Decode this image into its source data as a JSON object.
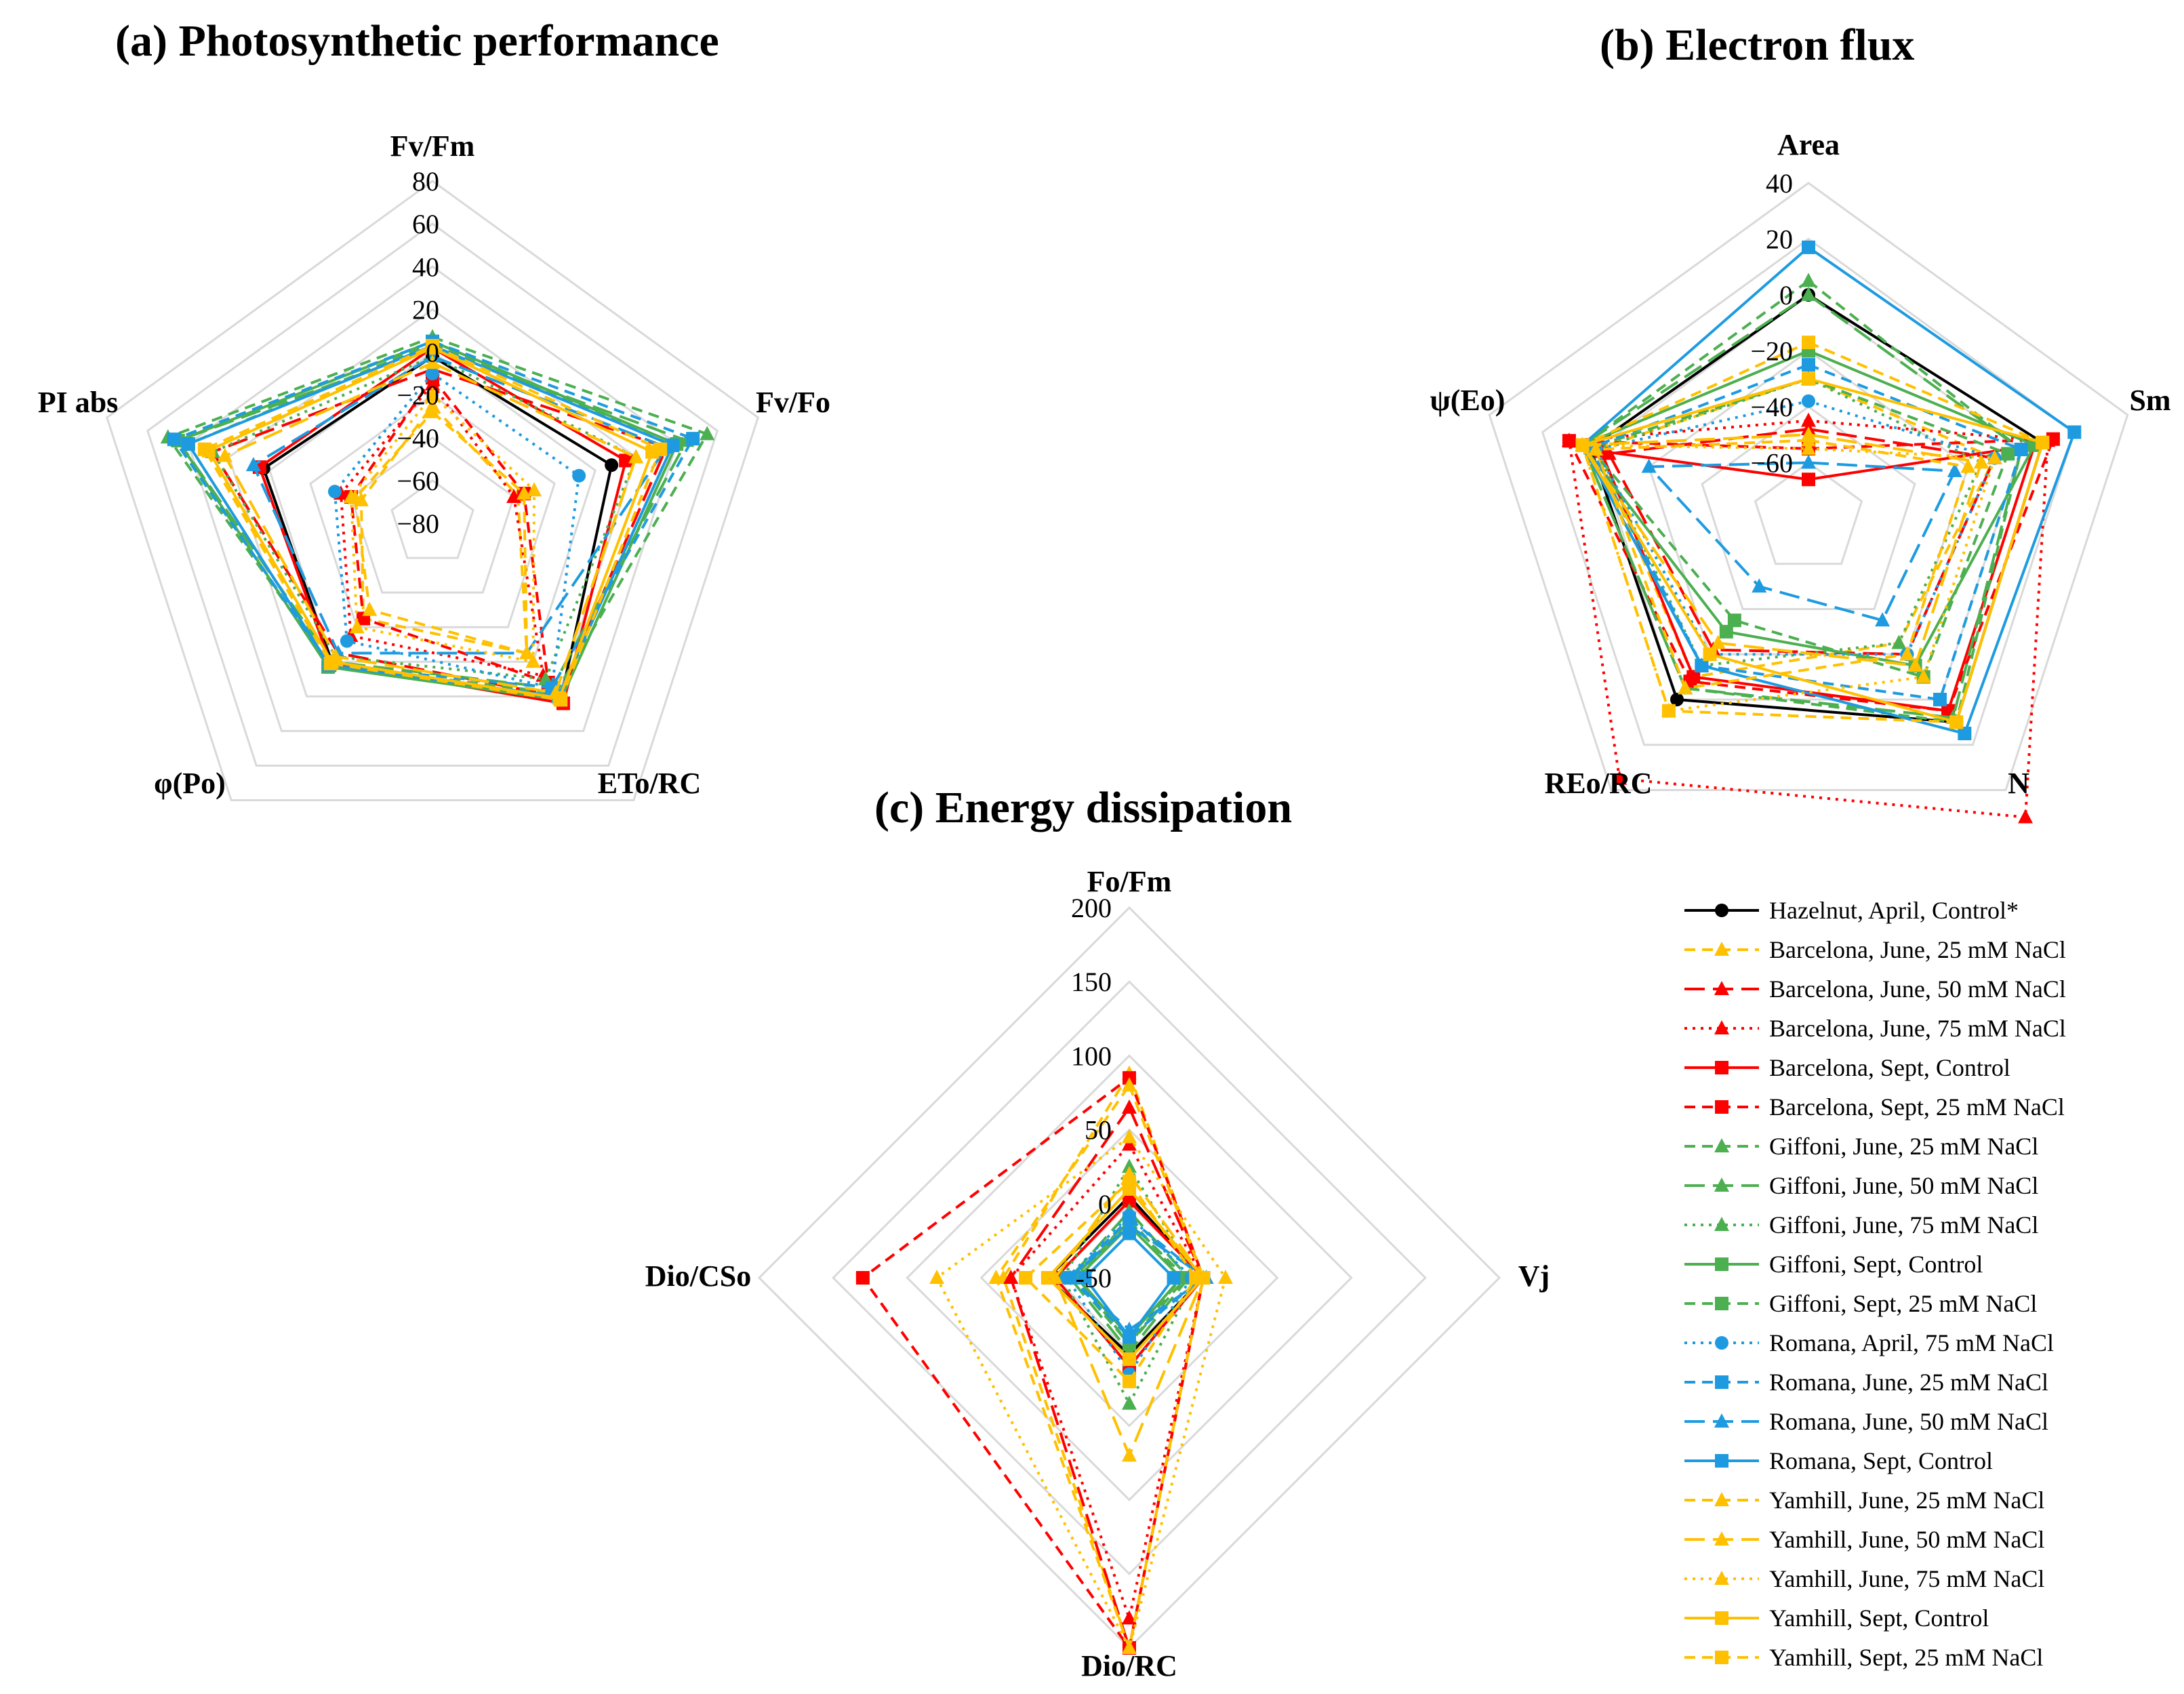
{
  "legend": {
    "entries": [
      {
        "label": "Hazelnut, April, Control*",
        "color": "#000000",
        "dash": "solid",
        "marker": "circle"
      },
      {
        "label": "Barcelona, June, 25 mM NaCl",
        "color": "#FFC000",
        "dash": "dash",
        "marker": "triangle"
      },
      {
        "label": "Barcelona, June, 50 mM NaCl",
        "color": "#FF0000",
        "dash": "longdash",
        "marker": "triangle"
      },
      {
        "label": "Barcelona, June, 75 mM NaCl",
        "color": "#FF0000",
        "dash": "dot",
        "marker": "triangle"
      },
      {
        "label": "Barcelona, Sept, Control",
        "color": "#FF0000",
        "dash": "solid",
        "marker": "square"
      },
      {
        "label": "Barcelona, Sept, 25 mM NaCl",
        "color": "#FF0000",
        "dash": "dash",
        "marker": "square"
      },
      {
        "label": "Giffoni, June, 25 mM NaCl",
        "color": "#4CAF50",
        "dash": "dash",
        "marker": "triangle"
      },
      {
        "label": "Giffoni, June, 50 mM NaCl",
        "color": "#4CAF50",
        "dash": "longdash",
        "marker": "triangle"
      },
      {
        "label": "Giffoni, June, 75 mM NaCl",
        "color": "#4CAF50",
        "dash": "dot",
        "marker": "triangle"
      },
      {
        "label": "Giffoni, Sept, Control",
        "color": "#4CAF50",
        "dash": "solid",
        "marker": "square"
      },
      {
        "label": "Giffoni, Sept, 25 mM NaCl",
        "color": "#4CAF50",
        "dash": "dash",
        "marker": "square"
      },
      {
        "label": "Romana, April, 75 mM NaCl",
        "color": "#1E9BE0",
        "dash": "dot",
        "marker": "circle"
      },
      {
        "label": "Romana, June, 25 mM NaCl",
        "color": "#1E9BE0",
        "dash": "dash",
        "marker": "square"
      },
      {
        "label": "Romana, June, 50 mM NaCl",
        "color": "#1E9BE0",
        "dash": "longdash",
        "marker": "triangle"
      },
      {
        "label": "Romana, Sept, Control",
        "color": "#1E9BE0",
        "dash": "solid",
        "marker": "square"
      },
      {
        "label": "Yamhill, June, 25 mM NaCl",
        "color": "#FFC000",
        "dash": "dash",
        "marker": "triangle"
      },
      {
        "label": "Yamhill, June, 50 mM NaCl",
        "color": "#FFC000",
        "dash": "longdash",
        "marker": "triangle"
      },
      {
        "label": "Yamhill, June, 75 mM NaCl",
        "color": "#FFC000",
        "dash": "dot",
        "marker": "triangle"
      },
      {
        "label": "Yamhill, Sept, Control",
        "color": "#FFC000",
        "dash": "solid",
        "marker": "square"
      },
      {
        "label": "Yamhill, Sept, 25 mM NaCl",
        "color": "#FFC000",
        "dash": "dash",
        "marker": "square"
      }
    ]
  },
  "chart_data": [
    {
      "type": "radar",
      "title": "(a) Photosynthetic performance",
      "axes": [
        "Fv/Fm",
        "Fv/Fo",
        "ETo/RC",
        "φ(Po)",
        "PI abs"
      ],
      "range": [
        -80,
        80
      ],
      "ticks": [
        -80,
        -60,
        -40,
        -20,
        0,
        20,
        40,
        60,
        80
      ],
      "tick_labels": [
        "−80",
        "−60",
        "−40",
        "−20",
        "0",
        "20",
        "40",
        "60",
        "80"
      ],
      "grid": true,
      "series": [
        {
          "name": "Hazelnut, April, Control*",
          "values": [
            -2,
            8,
            22,
            0,
            3
          ]
        },
        {
          "name": "Barcelona, June, 25 mM NaCl",
          "values": [
            -25,
            -38,
            -5,
            -25,
            -45
          ]
        },
        {
          "name": "Barcelona, June, 50 mM NaCl",
          "values": [
            -8,
            35,
            20,
            -5,
            28
          ]
        },
        {
          "name": "Barcelona, June, 75 mM NaCl",
          "values": [
            -15,
            -40,
            8,
            -15,
            -35
          ]
        },
        {
          "name": "Barcelona, Sept, Control",
          "values": [
            2,
            15,
            24,
            1,
            5
          ]
        },
        {
          "name": "Barcelona, Sept, 25 mM NaCl",
          "values": [
            -12,
            -35,
            12,
            -25,
            -40
          ]
        },
        {
          "name": "Giffoni, June, 25 mM NaCl",
          "values": [
            7,
            55,
            18,
            2,
            50
          ]
        },
        {
          "name": "Giffoni, June, 50 mM NaCl",
          "values": [
            2,
            45,
            15,
            0,
            45
          ]
        },
        {
          "name": "Giffoni, June, 75 mM NaCl",
          "values": [
            -2,
            20,
            10,
            -3,
            28
          ]
        },
        {
          "name": "Giffoni, Sept, Control",
          "values": [
            5,
            40,
            22,
            3,
            45
          ]
        },
        {
          "name": "Giffoni, Sept, 25 mM NaCl",
          "values": [
            4,
            38,
            20,
            2,
            40
          ]
        },
        {
          "name": "Romana, April, 75 mM NaCl",
          "values": [
            -10,
            -8,
            15,
            -12,
            -32
          ]
        },
        {
          "name": "Romana, June, 25 mM NaCl",
          "values": [
            5,
            48,
            15,
            2,
            47
          ]
        },
        {
          "name": "Romana, June, 50 mM NaCl",
          "values": [
            -2,
            35,
            -5,
            -5,
            8
          ]
        },
        {
          "name": "Romana, Sept, Control",
          "values": [
            3,
            38,
            20,
            2,
            40
          ]
        },
        {
          "name": "Yamhill, June, 25 mM NaCl",
          "values": [
            -28,
            -35,
            -5,
            -30,
            -42
          ]
        },
        {
          "name": "Yamhill, June, 50 mM NaCl",
          "values": [
            -5,
            20,
            18,
            -3,
            22
          ]
        },
        {
          "name": "Yamhill, June, 75 mM NaCl",
          "values": [
            -20,
            -30,
            0,
            -20,
            -40
          ]
        },
        {
          "name": "Yamhill, Sept, Control",
          "values": [
            2,
            28,
            21,
            0,
            30
          ]
        },
        {
          "name": "Yamhill, Sept, 25 mM NaCl",
          "values": [
            3,
            32,
            22,
            1,
            32
          ]
        }
      ]
    },
    {
      "type": "radar",
      "title": "(b) Electron flux",
      "axes": [
        "Area",
        "Sm",
        "N",
        "REo/RC",
        "ψ(Eo)"
      ],
      "range": [
        -80,
        40
      ],
      "ticks": [
        -80,
        -60,
        -40,
        -20,
        0,
        20,
        40
      ],
      "tick_labels": [
        "",
        "−60",
        "−40",
        "−20",
        "0",
        "20",
        "40"
      ],
      "grid": true,
      "series": [
        {
          "name": "Hazelnut, April, Control*",
          "values": [
            0,
            8,
            10,
            0,
            2
          ]
        },
        {
          "name": "Barcelona, June, 25 mM NaCl",
          "values": [
            -30,
            -10,
            -25,
            -10,
            0
          ]
        },
        {
          "name": "Barcelona, June, 50 mM NaCl",
          "values": [
            -48,
            -10,
            -20,
            -22,
            -5
          ]
        },
        {
          "name": "Barcelona, June, 75 mM NaCl",
          "values": [
            -45,
            10,
            52,
            35,
            10
          ]
        },
        {
          "name": "Barcelona, Sept, Control",
          "values": [
            -66,
            5,
            5,
            -10,
            -2
          ]
        },
        {
          "name": "Barcelona, Sept, 25 mM NaCl",
          "values": [
            -55,
            12,
            5,
            -8,
            10
          ]
        },
        {
          "name": "Giffoni, June, 25 mM NaCl",
          "values": [
            5,
            0,
            10,
            -5,
            5
          ]
        },
        {
          "name": "Giffoni, June, 50 mM NaCl",
          "values": [
            0,
            0,
            8,
            -5,
            5
          ]
        },
        {
          "name": "Giffoni, June, 75 mM NaCl",
          "values": [
            -30,
            -15,
            -25,
            -15,
            0
          ]
        },
        {
          "name": "Giffoni, Sept, Control",
          "values": [
            -20,
            5,
            -15,
            -30,
            5
          ]
        },
        {
          "name": "Giffoni, Sept, 25 mM NaCl",
          "values": [
            -30,
            -5,
            -10,
            -35,
            2
          ]
        },
        {
          "name": "Romana, April, 75 mM NaCl",
          "values": [
            -38,
            -10,
            -20,
            -20,
            0
          ]
        },
        {
          "name": "Romana, June, 25 mM NaCl",
          "values": [
            -25,
            0,
            0,
            -15,
            2
          ]
        },
        {
          "name": "Romana, June, 50 mM NaCl",
          "values": [
            -60,
            -25,
            -35,
            -50,
            -20
          ]
        },
        {
          "name": "Romana, Sept, Control",
          "values": [
            17,
            20,
            15,
            -15,
            5
          ]
        },
        {
          "name": "Yamhill, June, 25 mM NaCl",
          "values": [
            -52,
            -20,
            -20,
            -5,
            0
          ]
        },
        {
          "name": "Yamhill, June, 50 mM NaCl",
          "values": [
            -50,
            -15,
            -15,
            -25,
            5
          ]
        },
        {
          "name": "Yamhill, June, 75 mM NaCl",
          "values": [
            -55,
            -10,
            -10,
            5,
            5
          ]
        },
        {
          "name": "Yamhill, Sept, Control",
          "values": [
            -30,
            8,
            10,
            -20,
            5
          ]
        },
        {
          "name": "Yamhill, Sept, 25 mM NaCl",
          "values": [
            -17,
            8,
            10,
            5,
            5
          ]
        }
      ]
    },
    {
      "type": "radar",
      "title": "(c) Energy dissipation",
      "axes": [
        "Fo/Fm",
        "Vj",
        "Dio/RC",
        "Dio/CSo"
      ],
      "range": [
        -50,
        200
      ],
      "ticks": [
        -50,
        0,
        50,
        100,
        150,
        200
      ],
      "tick_labels": [
        "-50",
        "0",
        "50",
        "100",
        "150",
        "200"
      ],
      "grid": true,
      "series": [
        {
          "name": "Hazelnut, April, Control*",
          "values": [
            5,
            0,
            2,
            5
          ]
        },
        {
          "name": "Barcelona, June, 25 mM NaCl",
          "values": [
            88,
            0,
            200,
            35
          ]
        },
        {
          "name": "Barcelona, June, 50 mM NaCl",
          "values": [
            65,
            0,
            200,
            30
          ]
        },
        {
          "name": "Barcelona, June, 75 mM NaCl",
          "values": [
            40,
            0,
            180,
            30
          ]
        },
        {
          "name": "Barcelona, Sept, Control",
          "values": [
            2,
            0,
            10,
            0
          ]
        },
        {
          "name": "Barcelona, Sept, 25 mM NaCl",
          "values": [
            85,
            0,
            200,
            130
          ]
        },
        {
          "name": "Giffoni, June, 25 mM NaCl",
          "values": [
            -10,
            -15,
            -5,
            -15
          ]
        },
        {
          "name": "Giffoni, June, 50 mM NaCl",
          "values": [
            -5,
            -10,
            0,
            -10
          ]
        },
        {
          "name": "Giffoni, June, 75 mM NaCl",
          "values": [
            25,
            -5,
            35,
            -5
          ]
        },
        {
          "name": "Giffoni, Sept, Control",
          "values": [
            -15,
            -15,
            -10,
            -15
          ]
        },
        {
          "name": "Giffoni, Sept, 25 mM NaCl",
          "values": [
            -12,
            -12,
            -5,
            -12
          ]
        },
        {
          "name": "Romana, April, 75 mM NaCl",
          "values": [
            -8,
            -8,
            15,
            -8
          ]
        },
        {
          "name": "Romana, June, 25 mM NaCl",
          "values": [
            -10,
            0,
            -10,
            -10
          ]
        },
        {
          "name": "Romana, June, 50 mM NaCl",
          "values": [
            -15,
            2,
            -15,
            -10
          ]
        },
        {
          "name": "Romana, Sept, Control",
          "values": [
            -20,
            -20,
            -10,
            -20
          ]
        },
        {
          "name": "Yamhill, June, 25 mM NaCl",
          "values": [
            80,
            0,
            200,
            40
          ]
        },
        {
          "name": "Yamhill, June, 50 mM NaCl",
          "values": [
            20,
            0,
            70,
            0
          ]
        },
        {
          "name": "Yamhill, June, 75 mM NaCl",
          "values": [
            45,
            15,
            200,
            80
          ]
        },
        {
          "name": "Yamhill, Sept, Control",
          "values": [
            10,
            0,
            5,
            5
          ]
        },
        {
          "name": "Yamhill, Sept, 25 mM NaCl",
          "values": [
            15,
            -5,
            20,
            20
          ]
        }
      ]
    }
  ]
}
